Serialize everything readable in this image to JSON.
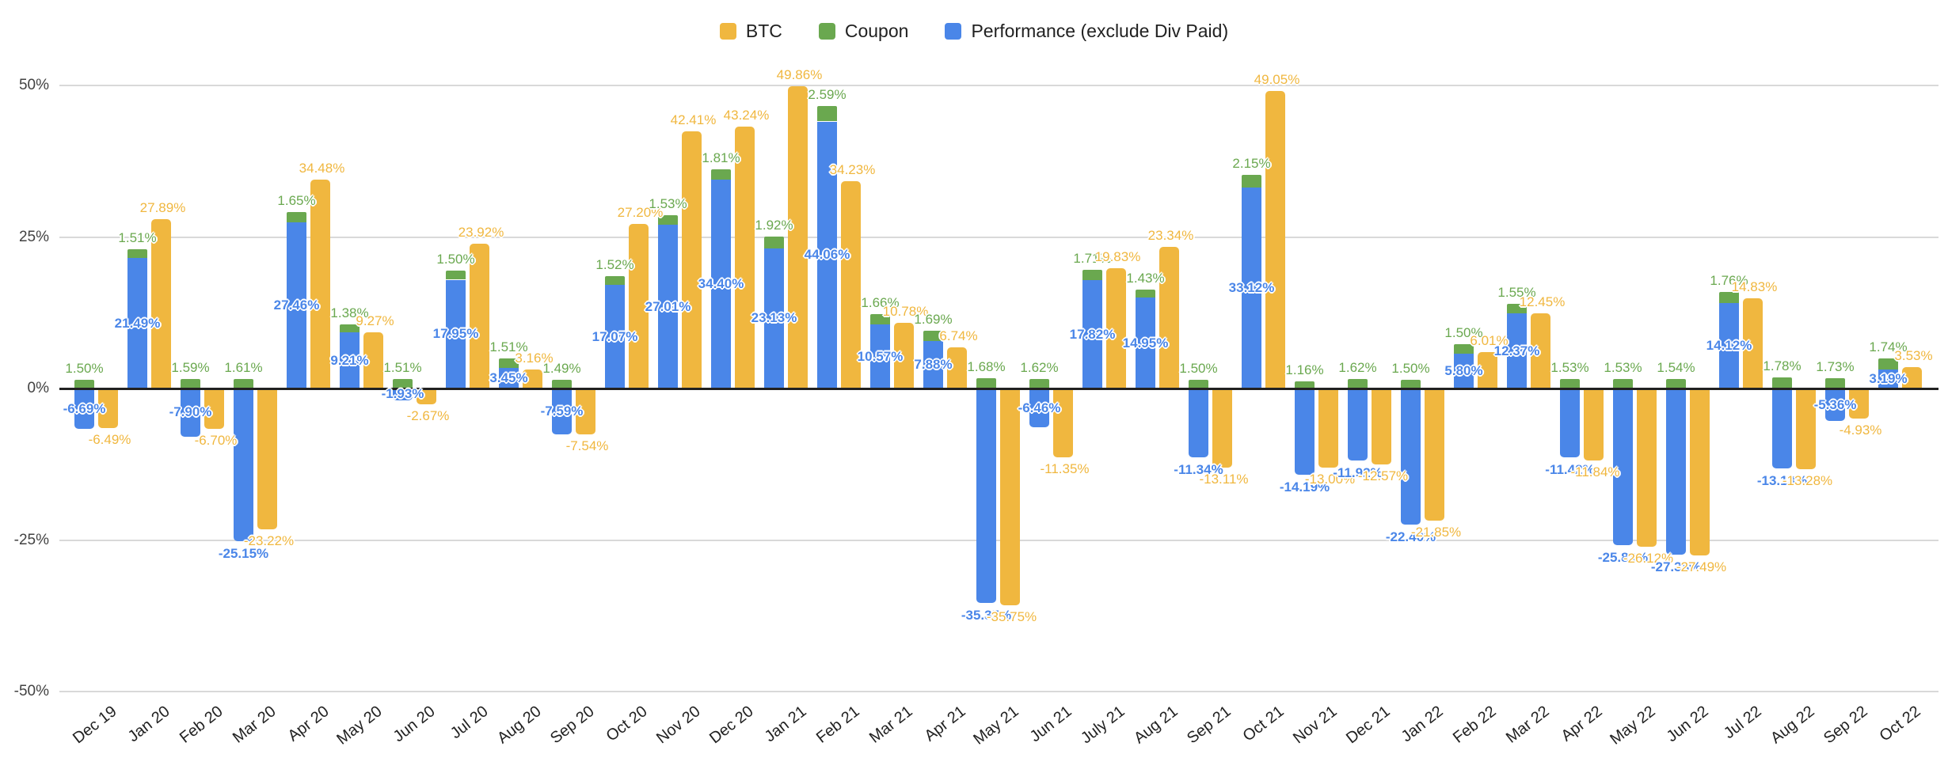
{
  "chart_data": {
    "type": "bar",
    "title": "",
    "xlabel": "",
    "ylabel": "",
    "ylim": [
      -50,
      50
    ],
    "y_ticks": [
      50,
      25,
      0,
      -25,
      -50
    ],
    "y_tick_labels": [
      "50%",
      "25%",
      "0%",
      "-25%",
      "-50%"
    ],
    "grid": true,
    "legend_position": "top",
    "structure": "Coupon is stacked on top of Performance in one column; BTC is a separate column in each month group",
    "value_suffix": "%",
    "gridline_color": "#d9d9d9",
    "axis_line_color": "#212121",
    "categories": [
      "Dec 19",
      "Jan 20",
      "Feb 20",
      "Mar 20",
      "Apr 20",
      "May 20",
      "Jun 20",
      "Jul 20",
      "Aug 20",
      "Sep 20",
      "Oct 20",
      "Nov 20",
      "Dec 20",
      "Jan 21",
      "Feb 21",
      "Mar 21",
      "Apr 21",
      "May 21",
      "Jun 21",
      "July 21",
      "Aug 21",
      "Sep 21",
      "Oct 21",
      "Nov 21",
      "Dec 21",
      "Jan 22",
      "Feb 22",
      "Mar 22",
      "Apr 22",
      "May 22",
      "Jun 22",
      "Jul 22",
      "Aug 22",
      "Sep 22",
      "Oct 22"
    ],
    "series": [
      {
        "name": "BTC",
        "color": "#F0B73F",
        "values": [
          -6.49,
          27.89,
          -6.7,
          -23.22,
          34.48,
          9.27,
          -2.67,
          23.92,
          3.16,
          -7.54,
          27.2,
          42.41,
          43.24,
          49.86,
          34.23,
          10.78,
          6.74,
          -35.75,
          -11.35,
          19.83,
          23.34,
          -13.11,
          49.05,
          -13.0,
          -12.57,
          -21.85,
          6.01,
          12.45,
          -11.84,
          -26.12,
          -27.49,
          14.83,
          -13.28,
          -4.93,
          3.53
        ]
      },
      {
        "name": "Coupon",
        "color": "#6AA84F",
        "values": [
          1.5,
          1.51,
          1.59,
          1.61,
          1.65,
          1.38,
          1.51,
          1.5,
          1.51,
          1.49,
          1.52,
          1.53,
          1.81,
          1.92,
          2.59,
          1.66,
          1.69,
          1.68,
          1.62,
          1.71,
          1.43,
          1.5,
          2.15,
          1.16,
          1.62,
          1.5,
          1.5,
          1.55,
          1.53,
          1.53,
          1.54,
          1.76,
          1.78,
          1.73,
          1.74
        ]
      },
      {
        "name": "Performance (exclude Div Paid)",
        "color": "#4A86E8",
        "values": [
          -6.69,
          21.49,
          -7.9,
          -25.15,
          27.46,
          9.21,
          -1.93,
          17.95,
          3.45,
          -7.59,
          17.07,
          27.01,
          34.4,
          23.13,
          44.06,
          10.57,
          7.88,
          -35.35,
          -6.46,
          17.82,
          14.95,
          -11.34,
          33.12,
          -14.19,
          -11.92,
          -22.4,
          5.8,
          12.37,
          -11.42,
          -25.83,
          -27.38,
          14.12,
          -13.13,
          -5.36,
          3.19
        ]
      }
    ]
  }
}
